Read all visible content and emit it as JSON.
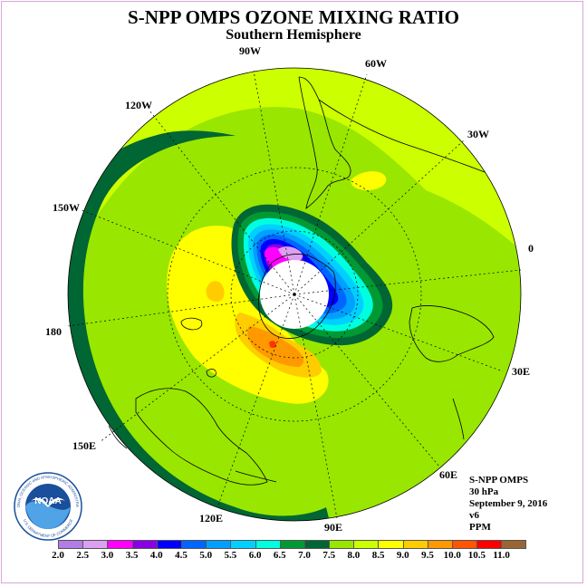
{
  "title": "S-NPP OMPS OZONE MIXING RATIO",
  "subtitle": "Southern Hemisphere",
  "longitude_labels": [
    "0",
    "30E",
    "60E",
    "90E",
    "120E",
    "150E",
    "180",
    "150W",
    "120W",
    "90W",
    "60W",
    "30W"
  ],
  "info": {
    "instrument": "S-NPP OMPS",
    "level": "30 hPa",
    "date": "September 9, 2016",
    "version": "v6",
    "units": "PPM"
  },
  "logo": {
    "text": "NOAA",
    "ring_text": "NATIONAL OCEANIC AND ATMOSPHERIC ADMINISTRATION",
    "ring_text_bottom": "U.S. DEPARTMENT OF COMMERCE"
  },
  "legend": {
    "ticks": [
      "2.0",
      "2.5",
      "3.0",
      "3.5",
      "4.0",
      "4.5",
      "5.0",
      "5.5",
      "6.0",
      "6.5",
      "7.0",
      "7.5",
      "8.0",
      "8.5",
      "9.0",
      "9.5",
      "10.0",
      "10.5",
      "11.0"
    ],
    "colors": [
      "#b27de6",
      "#dda0f0",
      "#ff00ff",
      "#8a00e6",
      "#0000ff",
      "#0066ff",
      "#00a0ff",
      "#00d0ff",
      "#00ffe0",
      "#009933",
      "#006633",
      "#99e600",
      "#ccff00",
      "#ffff00",
      "#ffcc00",
      "#ff9900",
      "#ff5500",
      "#ff0000",
      "#996633"
    ]
  }
}
